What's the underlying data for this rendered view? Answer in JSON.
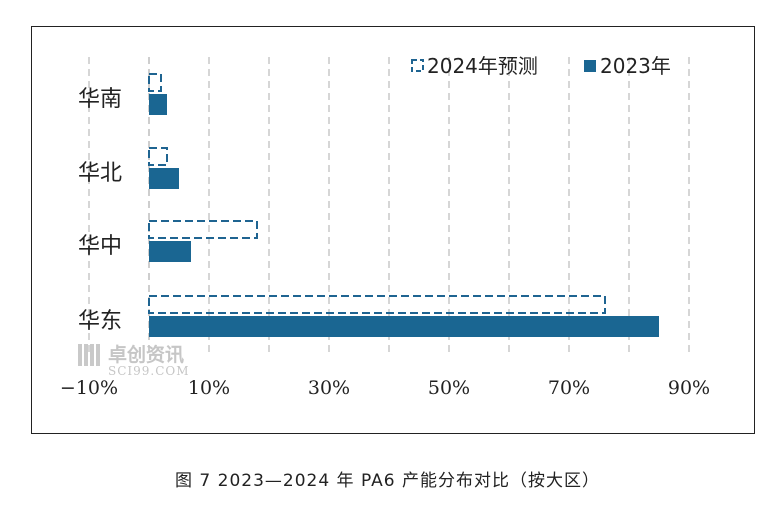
{
  "chart_data": {
    "type": "bar",
    "orientation": "horizontal",
    "categories": [
      "华南",
      "华北",
      "华中",
      "华东"
    ],
    "series": [
      {
        "name": "2024年预测",
        "values": [
          2,
          3,
          18,
          76
        ],
        "style": "dashed-outline",
        "color": "#1f6491"
      },
      {
        "name": "2023年",
        "values": [
          3,
          5,
          7,
          85
        ],
        "style": "solid",
        "color": "#1a6692"
      }
    ],
    "x_ticks": [
      "−10%",
      "10%",
      "30%",
      "50%",
      "70%",
      "90%"
    ],
    "xlim": [
      -10,
      90
    ],
    "grid": "vertical dashed",
    "legend_position": "top-right"
  },
  "watermark": {
    "name": "卓创资讯",
    "url": "SCI99.COM"
  },
  "caption": "图 7 2023—2024 年 PA6 产能分布对比（按大区）"
}
